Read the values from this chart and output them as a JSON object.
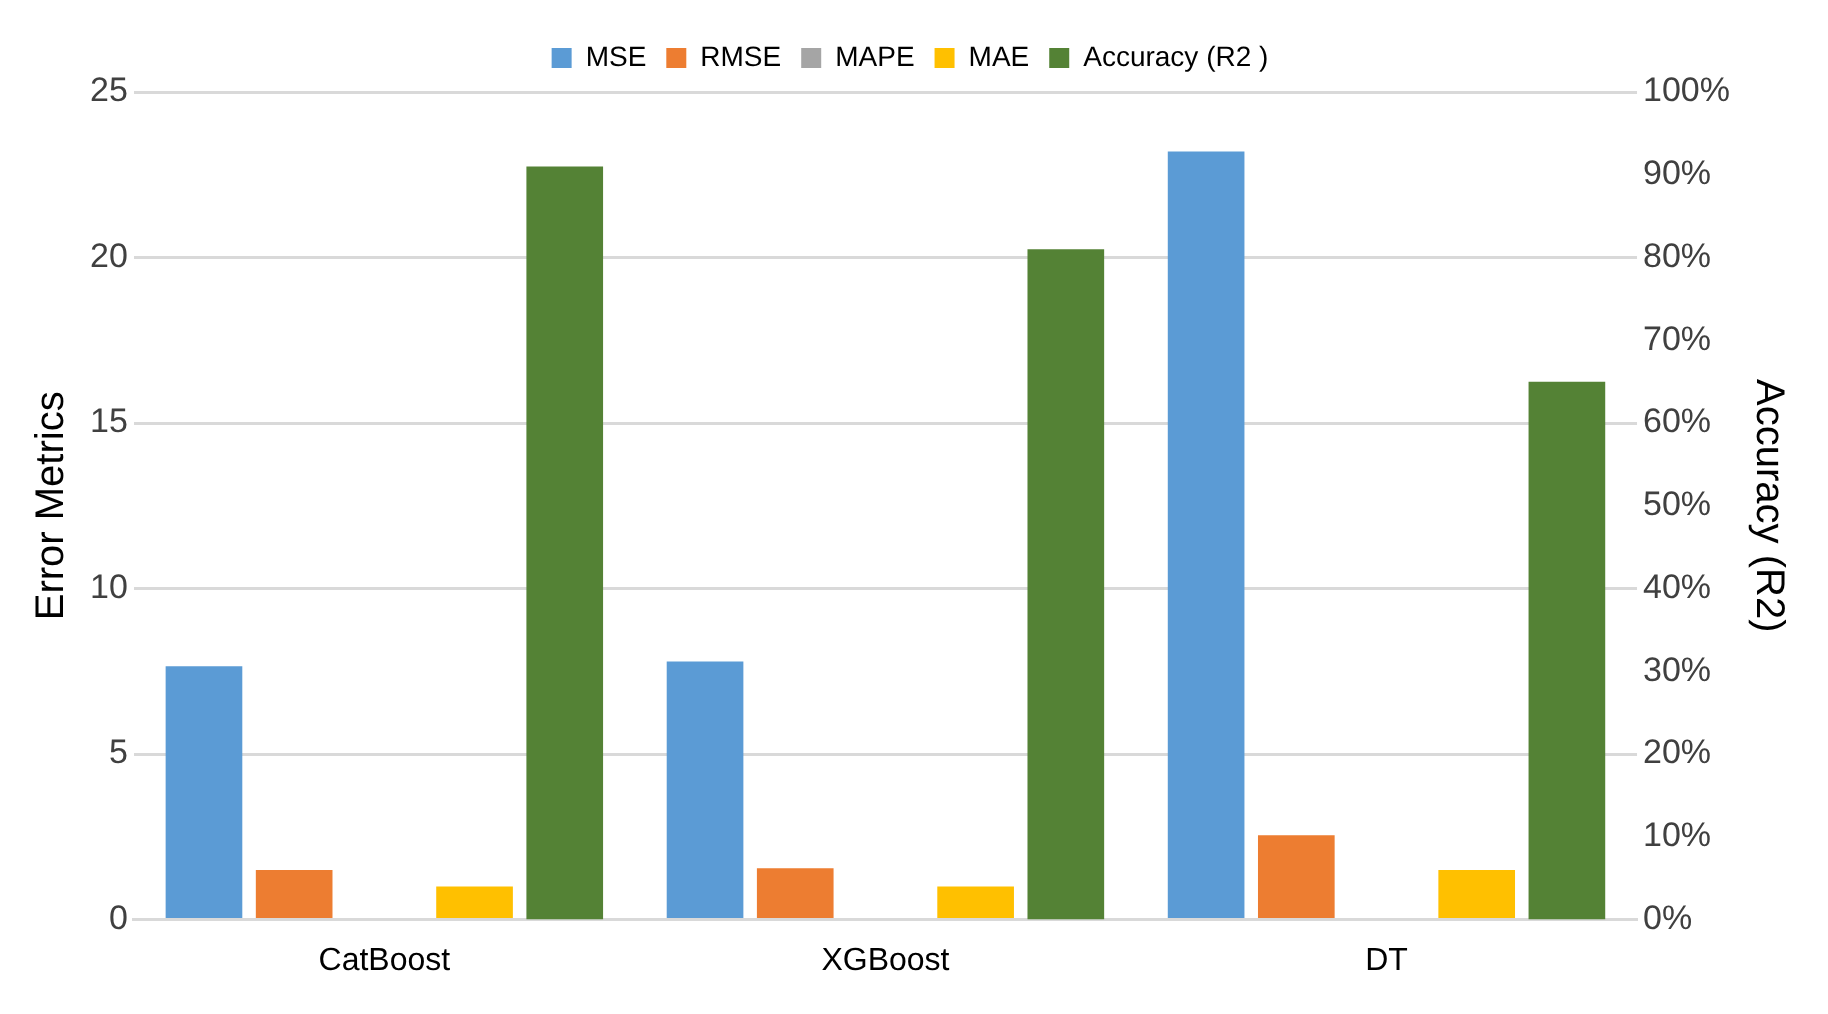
{
  "chart_data": {
    "type": "bar",
    "categories": [
      "CatBoost",
      "XGBoost",
      "DT"
    ],
    "series": [
      {
        "name": "MSE",
        "color": "#5b9bd5",
        "values": [
          7.65,
          7.8,
          23.2
        ]
      },
      {
        "name": "RMSE",
        "color": "#ed7d31",
        "values": [
          1.5,
          1.55,
          2.55
        ]
      },
      {
        "name": "MAPE",
        "color": "#a5a5a5",
        "values": [
          0,
          0,
          0
        ]
      },
      {
        "name": "MAE",
        "color": "#ffc000",
        "values": [
          1.0,
          1.0,
          1.5
        ]
      },
      {
        "name": "Accuracy (R2 )",
        "color": "#548235",
        "values": [
          91,
          81,
          65
        ],
        "axis": "y2"
      }
    ],
    "ylabel": "Error Metrics",
    "y2label": "Accuracy (R2)",
    "ylim": [
      0,
      25
    ],
    "yticks": [
      0,
      5,
      10,
      15,
      20,
      25
    ],
    "y2lim": [
      0,
      100
    ],
    "y2ticks": [
      {
        "value": 0,
        "label": "0%"
      },
      {
        "value": 10,
        "label": "10%"
      },
      {
        "value": 20,
        "label": "20%"
      },
      {
        "value": 30,
        "label": "30%"
      },
      {
        "value": 40,
        "label": "40%"
      },
      {
        "value": 50,
        "label": "50%"
      },
      {
        "value": 60,
        "label": "60%"
      },
      {
        "value": 70,
        "label": "70%"
      },
      {
        "value": 80,
        "label": "80%"
      },
      {
        "value": 90,
        "label": "90%"
      },
      {
        "value": 100,
        "label": "100%"
      }
    ],
    "grid": "y",
    "legend": "top"
  }
}
